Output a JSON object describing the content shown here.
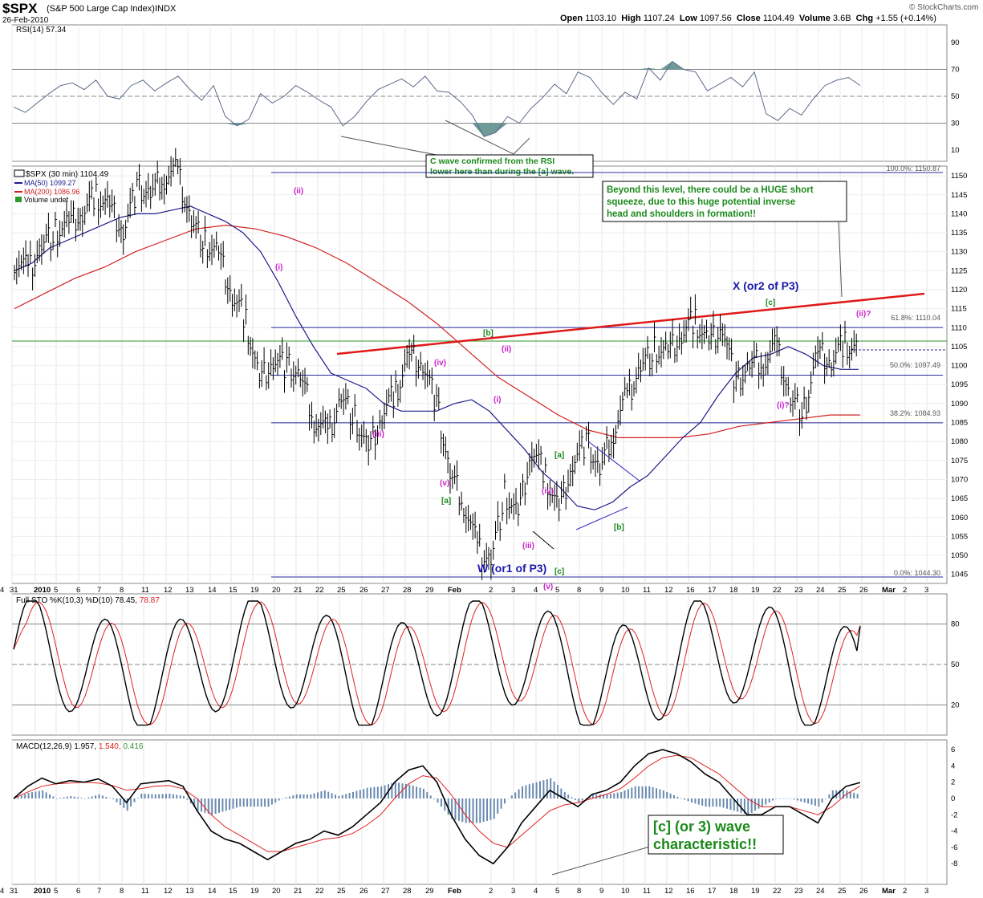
{
  "header": {
    "symbol": "$SPX",
    "name": "(S&P 500 Large Cap Index)",
    "exchange": "INDX",
    "date": "26-Feb-2010",
    "open_label": "Open",
    "open": "1103.10",
    "high_label": "High",
    "high": "1107.24",
    "low_label": "Low",
    "low": "1097.56",
    "close_label": "Close",
    "close": "1104.49",
    "volume_label": "Volume",
    "volume": "3.6B",
    "chg_label": "Chg",
    "chg": "+1.55 (+0.14%)",
    "brand": "© StockCharts.com"
  },
  "colors": {
    "price_bar": "#000000",
    "ma50": "#1a1a8c",
    "ma200": "#d42020",
    "rsi_line": "#5a6a8a",
    "rsi_fill": "#6e9a98",
    "grid": "#c8c8c8",
    "annot_green": "#1a8a1a",
    "annot_magenta": "#cc22cc",
    "annot_blue": "#1a1aaa",
    "fib_line": "#2a2a9c",
    "trend_red": "#e01818",
    "hline_green": "#2a9a2a",
    "sto_k": "#000000",
    "sto_d": "#e02020",
    "macd": "#000000",
    "signal": "#e02020",
    "hist": "#6a8ab0"
  },
  "x_axis": {
    "top_labels": [
      "31",
      "2010",
      "5",
      "6",
      "7",
      "8",
      "11",
      "12",
      "13",
      "14",
      "15",
      "19",
      "20",
      "21",
      "22",
      "25",
      "26",
      "27",
      "28",
      "29",
      "Feb",
      "2",
      "3",
      "4",
      "5",
      "8",
      "9",
      "10",
      "11",
      "12",
      "16",
      "17",
      "18",
      "19",
      "22",
      "23",
      "24",
      "25",
      "26",
      "Mar",
      "2",
      "3",
      "4"
    ],
    "mid_labels": [
      "31",
      "2010",
      "5",
      "6",
      "7",
      "8",
      "11",
      "12",
      "13",
      "14",
      "15",
      "19",
      "20",
      "21",
      "22",
      "25",
      "26",
      "27",
      "28",
      "29",
      "Feb",
      "2",
      "3",
      "4",
      "5",
      "8",
      "9",
      "10",
      "11",
      "12",
      "16",
      "17",
      "18",
      "19",
      "22",
      "23",
      "24",
      "25",
      "26",
      "Mar",
      "2",
      "3",
      "4"
    ]
  },
  "rsi_panel": {
    "title": "RSI(14) 57.34",
    "ticks": [
      "90",
      "70",
      "50",
      "30",
      "10"
    ],
    "annotation_line1": "C wave confirmed from the RSI",
    "annotation_line2": "lower here than during the [a] wave."
  },
  "sto_panel": {
    "title_prefix": "Full STO %K(10,3) %D(10) 78.45,",
    "title_d": "78.87",
    "ticks": [
      "80",
      "50",
      "20"
    ]
  },
  "macd_panel": {
    "title_prefix": "MACD(12,26,9) 1.957,",
    "title_signal": "1.540,",
    "title_hist": "0.416",
    "ticks": [
      "6",
      "4",
      "2",
      "0",
      "-2",
      "-4",
      "-6",
      "-8"
    ],
    "annotation_line1": "[c] (or 3) wave",
    "annotation_line2": "characteristic!!"
  },
  "price_panel": {
    "legend_title": "$SPX (30 min) 1104.49",
    "legend_ma50": "MA(50) 1099.27",
    "legend_ma200": "MA(200) 1086.96",
    "legend_volume": "Volume undef",
    "ticks": [
      "1150",
      "1145",
      "1140",
      "1135",
      "1130",
      "1125",
      "1120",
      "1115",
      "1110",
      "1105",
      "1100",
      "1095",
      "1090",
      "1085",
      "1080",
      "1075",
      "1070",
      "1065",
      "1060",
      "1055",
      "1050",
      "1045"
    ],
    "fib_labels": {
      "f100": "100.0%: 1150.87",
      "f618": "61.8%: 1110.04",
      "f500": "50.0%: 1097.49",
      "f382": "38.2%: 1084.93",
      "f000": "0.0%: 1044.30"
    },
    "box_text": [
      "Beyond this level, there could be a HUGE short",
      "squeeze, due to this huge potential inverse",
      "head and shoulders in formation!!"
    ],
    "wave_labels": {
      "W": "W (or1 of P3)",
      "X": "X (or2 of P3)",
      "i1": "(i)",
      "ii1": "(ii)",
      "iii1": "(iii)",
      "iv1": "(iv)",
      "v1": "(v)",
      "a1": "[a]",
      "b1": "[b]",
      "c1": "[c]",
      "i2": "(i)",
      "ii2": "(ii)",
      "iii2": "(iii)",
      "iv2": "(iv)",
      "v2": "(v)",
      "a2": "[a]",
      "b2": "[b]",
      "c2": "[c]",
      "i3": "(i)?",
      "ii3": "(ii)?"
    }
  },
  "chart_data": [
    {
      "type": "line",
      "title": "RSI(14) 57.34",
      "ylim": [
        0,
        100
      ],
      "reference_lines": [
        30,
        50,
        70
      ],
      "series": [
        {
          "name": "RSI(14)",
          "values": [
            42,
            38,
            45,
            52,
            58,
            60,
            55,
            62,
            50,
            48,
            58,
            62,
            54,
            60,
            65,
            55,
            47,
            58,
            35,
            28,
            33,
            52,
            45,
            50,
            58,
            53,
            47,
            42,
            28,
            35,
            46,
            55,
            59,
            63,
            57,
            65,
            54,
            53,
            46,
            36,
            20,
            23,
            35,
            30,
            41,
            49,
            59,
            52,
            68,
            64,
            53,
            44,
            53,
            48,
            71,
            62,
            76,
            70,
            68,
            54,
            59,
            64,
            57,
            68,
            37,
            32,
            41,
            36,
            48,
            58,
            62,
            64,
            58
          ]
        }
      ]
    },
    {
      "type": "line",
      "title": "$SPX (30 min) 1104.49",
      "ylim": [
        1044,
        1152
      ],
      "reference_lines": [
        1150.87,
        1110.04,
        1097.49,
        1084.93,
        1044.3
      ],
      "series": [
        {
          "name": "$SPX (30 min) 1104.49",
          "values": [
            1128,
            1125,
            1132,
            1135,
            1137,
            1140,
            1145,
            1142,
            1136,
            1147,
            1145,
            1150,
            1151,
            1138,
            1132,
            1129,
            1118,
            1112,
            1096,
            1102,
            1100,
            1097,
            1086,
            1082,
            1092,
            1086,
            1077,
            1087,
            1093,
            1103,
            1101,
            1090,
            1071,
            1064,
            1052,
            1049,
            1066,
            1060,
            1078,
            1071,
            1062,
            1075,
            1080,
            1072,
            1083,
            1092,
            1100,
            1104,
            1103,
            1108,
            1112,
            1106,
            1111,
            1095,
            1100,
            1101,
            1105,
            1091,
            1088,
            1103,
            1101,
            1106,
            1104
          ]
        },
        {
          "name": "MA(50) 1099.27",
          "values": [
            1125,
            1127,
            1131,
            1133,
            1135,
            1137,
            1139,
            1140,
            1140,
            1141,
            1142,
            1140,
            1138,
            1135,
            1130,
            1122,
            1113,
            1105,
            1098,
            1096,
            1094,
            1090,
            1088,
            1088,
            1088,
            1090,
            1091,
            1088,
            1083,
            1078,
            1072,
            1068,
            1063,
            1062,
            1064,
            1068,
            1071,
            1076,
            1081,
            1085,
            1092,
            1098,
            1102,
            1103,
            1105,
            1103,
            1100,
            1099,
            1099
          ]
        },
        {
          "name": "MA(200) 1086.96",
          "values": [
            1115,
            1119,
            1123,
            1126,
            1130,
            1133,
            1136,
            1137,
            1136,
            1134,
            1131,
            1127,
            1122,
            1117,
            1111,
            1104,
            1097,
            1092,
            1087,
            1083,
            1081,
            1081,
            1081,
            1082,
            1084,
            1085,
            1086,
            1087,
            1087
          ]
        }
      ]
    },
    {
      "type": "line",
      "title": "Full STO %K(10,3) %D(10) 78.45, 78.87",
      "ylim": [
        0,
        100
      ],
      "reference_lines": [
        20,
        50,
        80
      ],
      "series": [
        {
          "name": "%K",
          "values": [
            78.45
          ]
        },
        {
          "name": "%D",
          "values": [
            78.87
          ]
        }
      ]
    },
    {
      "type": "line",
      "title": "MACD(12,26,9) 1.957, 1.540, 0.416",
      "ylim": [
        -9,
        7
      ],
      "series": [
        {
          "name": "MACD",
          "values": [
            0,
            1.5,
            2.5,
            1.8,
            2.2,
            2.0,
            2.4,
            1.5,
            -0.5,
            1.8,
            2.0,
            2.2,
            1.5,
            -1.5,
            -4,
            -5,
            -5.5,
            -6.5,
            -7.5,
            -6.5,
            -5.5,
            -5,
            -4,
            -4.5,
            -3.5,
            -2,
            -0.5,
            2,
            3.5,
            4,
            2,
            -2,
            -5,
            -7,
            -8,
            -6,
            -3,
            -1,
            1,
            0,
            -1,
            0.5,
            1,
            2,
            4,
            5.5,
            6,
            5.5,
            4.5,
            3,
            2,
            0,
            -2,
            -2,
            -1,
            -1,
            -2,
            -3,
            0,
            1.5,
            1.957
          ]
        },
        {
          "name": "Signal",
          "values": [
            0,
            0.8,
            1.5,
            1.8,
            1.9,
            2.0,
            1.9,
            1.6,
            1.0,
            1.2,
            1.5,
            1.6,
            1.2,
            0,
            -2,
            -3.5,
            -4.5,
            -5.5,
            -6.5,
            -6.5,
            -6,
            -5.5,
            -5,
            -4.8,
            -4.3,
            -3.3,
            -2,
            0,
            1.8,
            2.8,
            2.5,
            0.5,
            -2,
            -4,
            -5.5,
            -6,
            -4.5,
            -3,
            -1.5,
            -0.8,
            -0.5,
            0,
            0.5,
            1.2,
            2.5,
            4,
            5,
            5.3,
            5,
            4,
            3,
            1.5,
            0,
            -1,
            -1,
            -1,
            -1.5,
            -2,
            -1,
            0.5,
            1.54
          ]
        },
        {
          "name": "Histogram",
          "values": [
            0.416
          ]
        }
      ]
    }
  ]
}
